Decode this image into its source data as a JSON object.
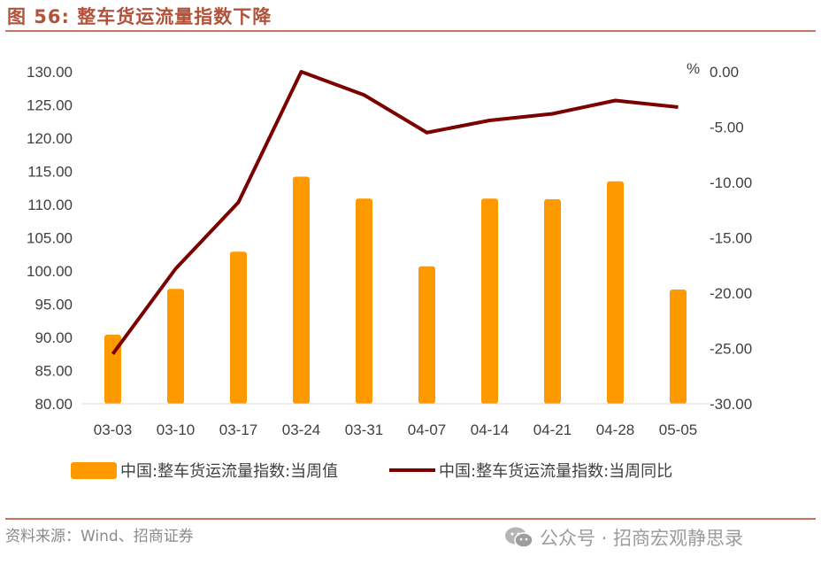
{
  "figure": {
    "title": "图 56:  整车货运流量指数下降",
    "source": "资料来源：Wind、招商证券",
    "watermark": "公众号 · 招商宏观静思录"
  },
  "colors": {
    "bar": "#ff9900",
    "line": "#7b0000",
    "title": "#b1523a",
    "rule": "#c8735c"
  },
  "chart_data": {
    "type": "bar+line",
    "categories": [
      "03-03",
      "03-10",
      "03-17",
      "03-24",
      "03-31",
      "04-07",
      "04-14",
      "04-21",
      "04-28",
      "05-05"
    ],
    "series": [
      {
        "name": "中国:整车货运流量指数:当周值",
        "type": "bar",
        "axis": "left",
        "values": [
          90.4,
          97.3,
          102.9,
          114.2,
          110.9,
          100.7,
          110.9,
          110.8,
          113.5,
          97.2
        ]
      },
      {
        "name": "中国:整车货运流量指数:当周同比",
        "type": "line",
        "axis": "right",
        "values": [
          -25.5,
          -17.8,
          -11.8,
          0.0,
          -2.1,
          -5.5,
          -4.4,
          -3.8,
          -2.6,
          -3.2
        ]
      }
    ],
    "y_left": {
      "min": 80,
      "max": 130,
      "ticks": [
        "80.00",
        "85.00",
        "90.00",
        "95.00",
        "100.00",
        "105.00",
        "110.00",
        "115.00",
        "120.00",
        "125.00",
        "130.00"
      ]
    },
    "y_right": {
      "min": -30,
      "max": 0,
      "unit": "%",
      "ticks": [
        "-30.00",
        "-25.00",
        "-20.00",
        "-15.00",
        "-10.00",
        "-5.00",
        "0.00"
      ]
    },
    "grid": false,
    "legend_position": "bottom"
  }
}
